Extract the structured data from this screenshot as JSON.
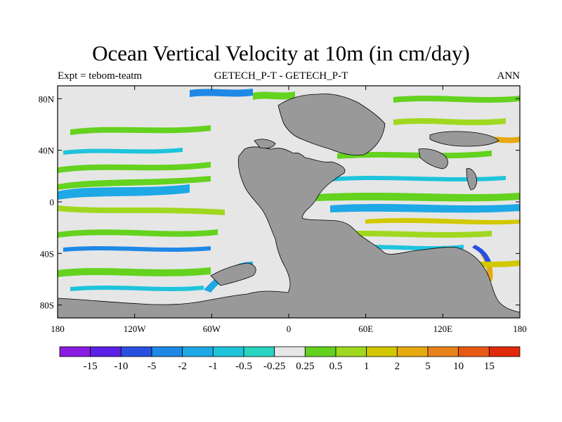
{
  "header": {
    "title": "Ocean Vertical Velocity at 10m (in cm/day)",
    "left_label": "Expt = tebom-teatm",
    "center_label": "GETECH_P-T - GETECH_P-T",
    "right_label": "ANN"
  },
  "map": {
    "x_ticks": [
      {
        "lon": -180,
        "label": "180"
      },
      {
        "lon": -120,
        "label": "120W"
      },
      {
        "lon": -60,
        "label": "60W"
      },
      {
        "lon": 0,
        "label": "0"
      },
      {
        "lon": 60,
        "label": "60E"
      },
      {
        "lon": 120,
        "label": "120E"
      },
      {
        "lon": 180,
        "label": "180"
      }
    ],
    "y_ticks": [
      {
        "lat": 80,
        "label": "80N"
      },
      {
        "lat": 40,
        "label": "40N"
      },
      {
        "lat": 0,
        "label": "0"
      },
      {
        "lat": -40,
        "label": "40S"
      },
      {
        "lat": -80,
        "label": "80S"
      }
    ],
    "lon_range": [
      -180,
      180
    ],
    "lat_range": [
      -90,
      90
    ],
    "colors": {
      "ocean_neutral": "#e6e6e6",
      "land": "#999999",
      "frame": "#000000"
    }
  },
  "colorbar": {
    "labels": [
      "-15",
      "-10",
      "-5",
      "-2",
      "-1",
      "-0.5",
      "-0.25",
      "0.25",
      "0.5",
      "1",
      "2",
      "5",
      "10",
      "15"
    ],
    "colors": [
      "#8a1ae0",
      "#5a20e6",
      "#2850e0",
      "#1e88e6",
      "#1ea8e6",
      "#1ec4dc",
      "#2ad2c0",
      "#e6e6e6",
      "#64d21e",
      "#a0d820",
      "#d2c800",
      "#e6aa10",
      "#e8821a",
      "#e85a14",
      "#e02a0a"
    ]
  }
}
